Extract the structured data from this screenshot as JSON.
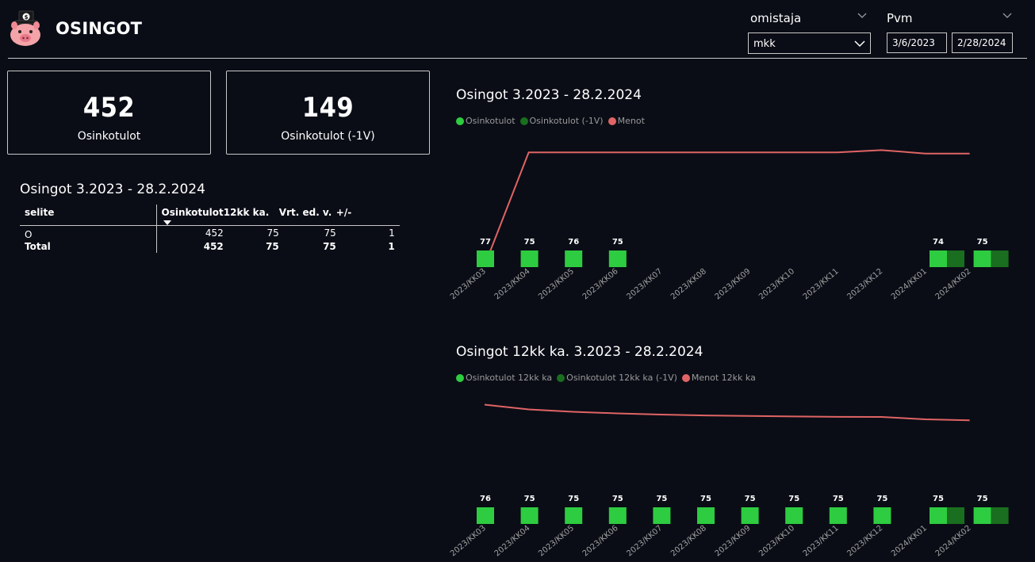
{
  "header": {
    "title": "OSINGOT"
  },
  "filters": {
    "owner_label": "omistaja",
    "owner_value": "mkk",
    "date_label": "Pvm",
    "date_start": "3/6/2023",
    "date_end": "2/28/2024"
  },
  "kpis": [
    {
      "value": "452",
      "label": "Osinkotulot"
    },
    {
      "value": "149",
      "label": "Osinkotulot (-1V)"
    }
  ],
  "table": {
    "title": "Osingot 3.2023 - 28.2.2024",
    "columns": [
      "selite",
      "Osinkotulot",
      "12kk ka.",
      "Vrt. ed. v.",
      "+/-"
    ],
    "rows": [
      {
        "label": "O",
        "values": [
          "452",
          "75",
          "75",
          "1"
        ]
      }
    ],
    "total": {
      "label": "Total",
      "values": [
        "452",
        "75",
        "75",
        "1"
      ]
    }
  },
  "colors": {
    "income": "#2ecc40",
    "income_prev": "#1a6e1f",
    "expenses": "#e06464"
  },
  "chart_data": [
    {
      "type": "bar",
      "title": "Osingot 3.2023 - 28.2.2024",
      "categories": [
        "2023/KK03",
        "2023/KK04",
        "2023/KK05",
        "2023/KK06",
        "2023/KK07",
        "2023/KK08",
        "2023/KK09",
        "2023/KK10",
        "2023/KK11",
        "2023/KK12",
        "2024/KK01",
        "2024/KK02"
      ],
      "legend": [
        "Osinkotulot",
        "Osinkotulot (-1V)",
        "Menot"
      ],
      "series": [
        {
          "name": "Osinkotulot",
          "color": "#2ecc40",
          "values": [
            77,
            75,
            76,
            75,
            null,
            null,
            null,
            null,
            null,
            null,
            74,
            75
          ]
        },
        {
          "name": "Osinkotulot (-1V)",
          "color": "#1a6e1f",
          "values": [
            null,
            null,
            null,
            null,
            null,
            null,
            null,
            null,
            null,
            null,
            74,
            75
          ]
        },
        {
          "name": "Menot",
          "type": "line",
          "color": "#e06464",
          "values": [
            0,
            1000,
            1000,
            1000,
            1000,
            1000,
            1000,
            1000,
            1000,
            1020,
            990,
            990
          ]
        }
      ],
      "data_labels": [
        "77",
        "75",
        "76",
        "75",
        "",
        "",
        "",
        "",
        "",
        "",
        "74",
        "75"
      ],
      "line_range": [
        0,
        1030
      ]
    },
    {
      "type": "bar",
      "title": "Osingot 12kk ka. 3.2023 - 28.2.2024",
      "categories": [
        "2023/KK03",
        "2023/KK04",
        "2023/KK05",
        "2023/KK06",
        "2023/KK07",
        "2023/KK08",
        "2023/KK09",
        "2023/KK10",
        "2023/KK11",
        "2023/KK12",
        "2024/KK01",
        "2024/KK02"
      ],
      "legend": [
        "Osinkotulot 12kk ka",
        "Osinkotulot 12kk ka (-1V)",
        "Menot 12kk ka"
      ],
      "series": [
        {
          "name": "Osinkotulot 12kk ka",
          "color": "#2ecc40",
          "values": [
            76,
            75,
            75,
            75,
            75,
            75,
            75,
            75,
            75,
            75,
            75,
            75
          ]
        },
        {
          "name": "Osinkotulot 12kk ka (-1V)",
          "color": "#1a6e1f",
          "values": [
            null,
            null,
            null,
            null,
            null,
            null,
            null,
            null,
            null,
            null,
            75,
            75
          ]
        },
        {
          "name": "Menot 12kk ka",
          "type": "line",
          "color": "#e06464",
          "values": [
            1000,
            960,
            940,
            927,
            917,
            910,
            905,
            901,
            898,
            897,
            877,
            869
          ]
        }
      ],
      "data_labels": [
        "76",
        "75",
        "75",
        "75",
        "75",
        "75",
        "75",
        "75",
        "75",
        "75",
        "75",
        "75"
      ],
      "line_range": [
        0,
        1030
      ]
    }
  ]
}
